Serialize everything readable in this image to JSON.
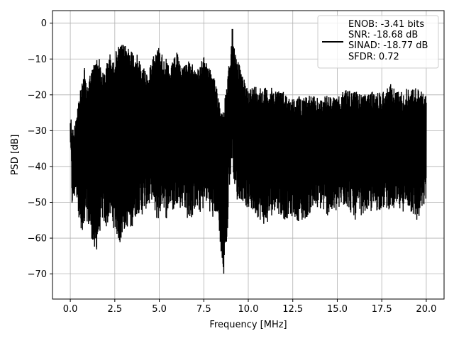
{
  "chart_data": {
    "type": "line",
    "title": "",
    "xlabel": "Frequency [MHz]",
    "ylabel": "PSD [dB]",
    "xlim": [
      -1.0,
      21.0
    ],
    "ylim": [
      -77.0,
      3.5
    ],
    "xticks": [
      0.0,
      2.5,
      5.0,
      7.5,
      10.0,
      12.5,
      15.0,
      17.5,
      20.0
    ],
    "xtick_labels": [
      "0.0",
      "2.5",
      "5.0",
      "7.5",
      "10.0",
      "12.5",
      "15.0",
      "17.5",
      "20.0"
    ],
    "yticks": [
      0,
      -10,
      -20,
      -30,
      -40,
      -50,
      -60,
      -70
    ],
    "ytick_labels": [
      "0",
      "−10",
      "−20",
      "−30",
      "−40",
      "−50",
      "−60",
      "−70"
    ],
    "grid": true,
    "legend_position": "top-right",
    "legend_lines": [
      "ENOB: -3.41 bits",
      "SNR: -18.68 dB",
      "SINAD: -18.77 dB",
      "SFDR: 0.72"
    ],
    "line_color": "#000000",
    "series": [
      {
        "x": [
          0.0,
          0.1,
          0.2,
          0.3,
          0.4,
          0.5,
          0.6,
          0.7,
          0.8,
          0.9,
          1.0,
          1.2,
          1.4,
          1.6,
          1.8,
          2.0,
          2.2,
          2.4,
          2.6,
          2.8,
          3.0,
          3.2,
          3.4,
          3.6,
          3.8,
          4.0,
          4.2,
          4.4,
          4.6,
          4.8,
          5.0,
          5.2,
          5.4,
          5.6,
          5.8,
          6.0,
          6.2,
          6.4,
          6.6,
          6.8,
          7.0,
          7.2,
          7.4,
          7.6,
          7.8,
          8.0,
          8.2,
          8.4,
          8.6,
          8.7,
          8.8,
          8.9,
          9.0,
          9.1,
          9.2,
          9.3,
          9.4,
          9.6,
          9.8,
          10.0,
          10.5,
          11.0,
          11.5,
          12.0,
          12.5,
          13.0,
          13.5,
          14.0,
          14.5,
          15.0,
          15.5,
          16.0,
          16.5,
          17.0,
          17.5,
          18.0,
          18.5,
          19.0,
          19.5,
          20.0
        ],
        "upper": [
          -24,
          -28,
          -30,
          -25,
          -22,
          -20,
          -18,
          -16,
          -12,
          -18,
          -15,
          -13,
          -10,
          -9,
          -14,
          -12,
          -8,
          -11,
          -7,
          -6,
          -6,
          -6,
          -7,
          -8,
          -9,
          -12,
          -12,
          -15,
          -8,
          -8,
          -6,
          -9,
          -10,
          -13,
          -10,
          -8,
          -12,
          -11,
          -10,
          -12,
          -10,
          -13,
          -10,
          -9,
          -12,
          -15,
          -16,
          -22,
          -24,
          -20,
          -18,
          -12,
          -10,
          0,
          -5,
          -8,
          -9,
          -14,
          -16,
          -18,
          -17,
          -18,
          -18,
          -19,
          -21,
          -20,
          -20,
          -21,
          -20,
          -21,
          -18,
          -19,
          -20,
          -19,
          -19,
          -17,
          -19,
          -18,
          -18,
          -20
        ],
        "lower": [
          -35,
          -52,
          -51,
          -48,
          -50,
          -55,
          -60,
          -62,
          -58,
          -54,
          -57,
          -60,
          -66,
          -60,
          -55,
          -58,
          -54,
          -57,
          -59,
          -62,
          -58,
          -57,
          -58,
          -55,
          -53,
          -54,
          -52,
          -52,
          -49,
          -55,
          -55,
          -50,
          -55,
          -51,
          -53,
          -50,
          -52,
          -51,
          -55,
          -55,
          -52,
          -53,
          -53,
          -50,
          -52,
          -55,
          -53,
          -60,
          -73,
          -63,
          -65,
          -47,
          -43,
          -38,
          -44,
          -48,
          -50,
          -49,
          -51,
          -52,
          -54,
          -57,
          -52,
          -55,
          -54,
          -56,
          -53,
          -52,
          -54,
          -53,
          -51,
          -55,
          -53,
          -53,
          -52,
          -52,
          -53,
          -52,
          -56,
          -50
        ]
      }
    ]
  }
}
